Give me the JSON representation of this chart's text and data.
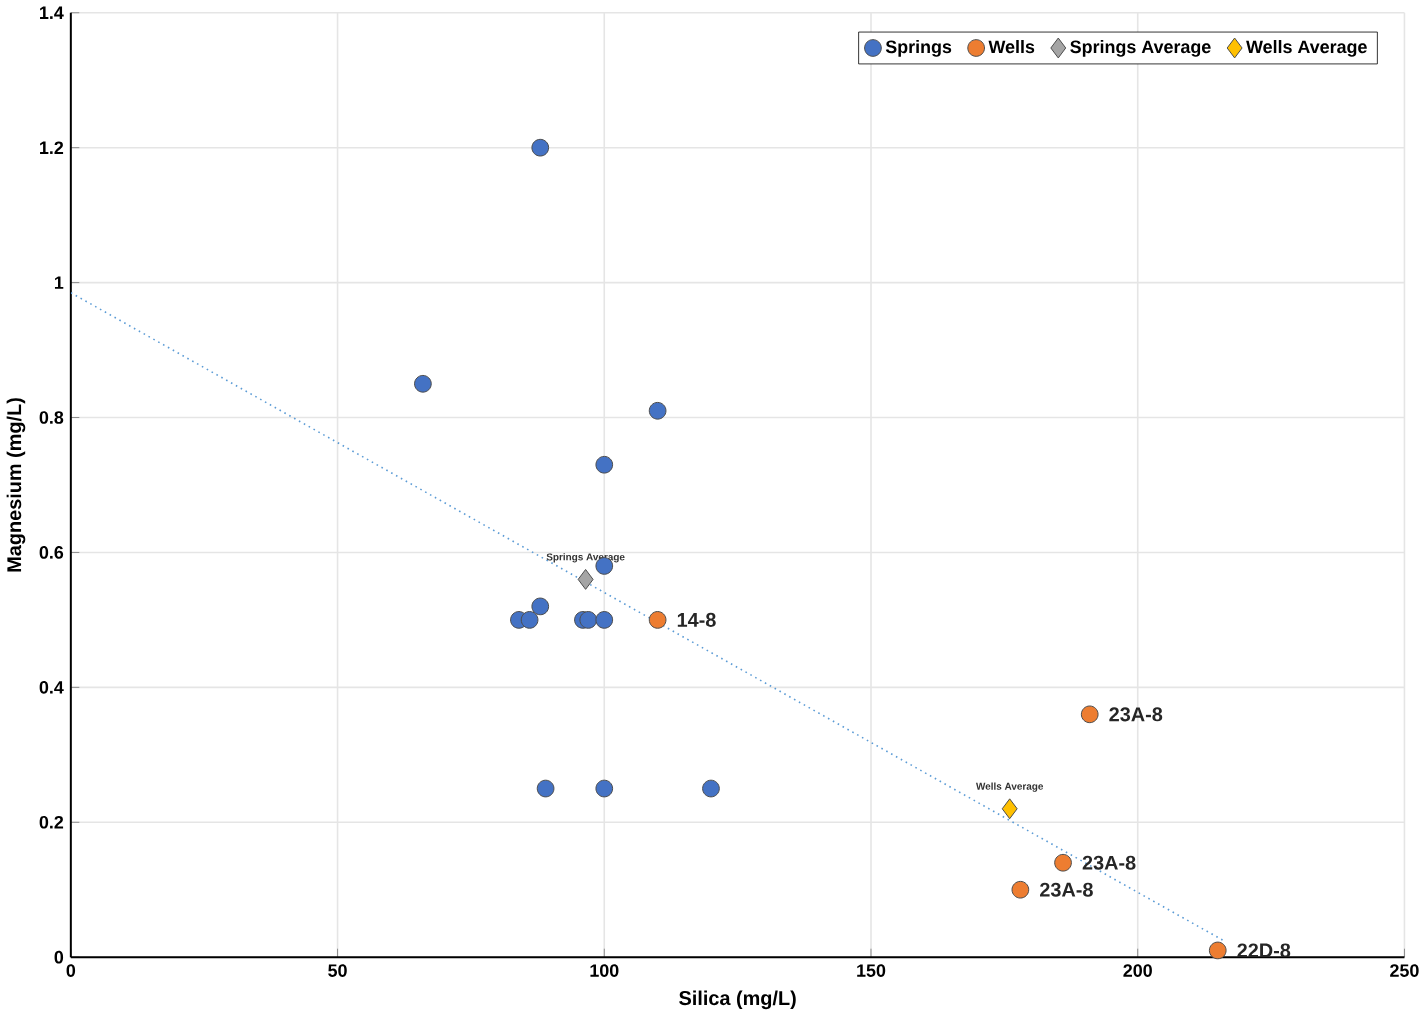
{
  "chart_data": {
    "type": "scatter",
    "xlabel": "Silica (mg/L)",
    "ylabel": "Magnesium (mg/L)",
    "xlim": [
      0,
      250
    ],
    "xticks": [
      0,
      50,
      100,
      150,
      200,
      250
    ],
    "ylim": [
      0,
      1.4
    ],
    "yticks": [
      0,
      0.2,
      0.4,
      0.6,
      0.8,
      1,
      1.2,
      1.4
    ],
    "grid": true,
    "legend": "top right",
    "series": [
      {
        "name": "Springs",
        "color": "#4472c4",
        "marker": "circle",
        "x": [
          88,
          66,
          110,
          100,
          100,
          88,
          84,
          86,
          96,
          97,
          100,
          89,
          100,
          120
        ],
        "values": [
          1.2,
          0.85,
          0.81,
          0.73,
          0.58,
          0.52,
          0.5,
          0.5,
          0.5,
          0.5,
          0.5,
          0.25,
          0.25,
          0.25
        ]
      },
      {
        "name": "Wells",
        "color": "#ed7d31",
        "marker": "circle",
        "x": [
          110,
          191,
          186,
          178,
          215
        ],
        "values": [
          0.5,
          0.36,
          0.14,
          0.1,
          0.01
        ]
      },
      {
        "name": "Springs Average",
        "color": "#a5a5a5",
        "marker": "diamond",
        "x": [
          96.5
        ],
        "values": [
          0.56
        ]
      },
      {
        "name": "Wells Average",
        "color": "#ffc000",
        "marker": "diamond",
        "x": [
          176
        ],
        "values": [
          0.22
        ]
      },
      {
        "type": "line",
        "color": "#5b9bd5",
        "line_style": "dotted",
        "marker": "none",
        "x": [
          0,
          216
        ],
        "values": [
          0.985,
          0.025
        ]
      }
    ],
    "annotations": [
      {
        "text": "14-8",
        "x": 110,
        "y": 0.5
      },
      {
        "text": "23A-8",
        "x": 191,
        "y": 0.36
      },
      {
        "text": "23A-8",
        "x": 186,
        "y": 0.14
      },
      {
        "text": "23A-8",
        "x": 178,
        "y": 0.1
      },
      {
        "text": "22D-8",
        "x": 215,
        "y": 0.01
      },
      {
        "text": "Springs Average",
        "x": 96.5,
        "y": 0.56
      },
      {
        "text": "Wells Average",
        "x": 176,
        "y": 0.22
      }
    ]
  }
}
